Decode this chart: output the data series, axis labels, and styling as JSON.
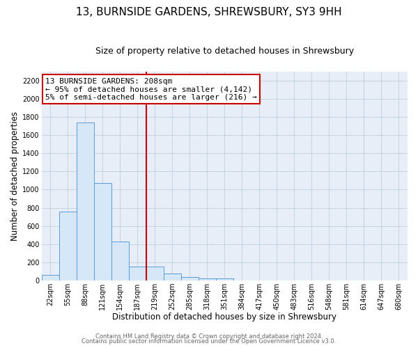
{
  "title": "13, BURNSIDE GARDENS, SHREWSBURY, SY3 9HH",
  "subtitle": "Size of property relative to detached houses in Shrewsbury",
  "xlabel": "Distribution of detached houses by size in Shrewsbury",
  "ylabel": "Number of detached properties",
  "bar_labels": [
    "22sqm",
    "55sqm",
    "88sqm",
    "121sqm",
    "154sqm",
    "187sqm",
    "219sqm",
    "252sqm",
    "285sqm",
    "318sqm",
    "351sqm",
    "384sqm",
    "417sqm",
    "450sqm",
    "483sqm",
    "516sqm",
    "548sqm",
    "581sqm",
    "614sqm",
    "647sqm",
    "680sqm"
  ],
  "bar_values": [
    60,
    760,
    1740,
    1070,
    430,
    155,
    155,
    80,
    35,
    25,
    20,
    0,
    0,
    0,
    0,
    0,
    0,
    0,
    0,
    0,
    0
  ],
  "bar_color": "#d6e8f7",
  "bar_edge_color": "#5b9bd5",
  "ylim": [
    0,
    2300
  ],
  "yticks": [
    0,
    200,
    400,
    600,
    800,
    1000,
    1200,
    1400,
    1600,
    1800,
    2000,
    2200
  ],
  "property_line_color": "#cc0000",
  "annotation_title": "13 BURNSIDE GARDENS: 208sqm",
  "annotation_line1": "← 95% of detached houses are smaller (4,142)",
  "annotation_line2": "5% of semi-detached houses are larger (216) →",
  "footer1": "Contains HM Land Registry data © Crown copyright and database right 2024.",
  "footer2": "Contains public sector information licensed under the Open Government Licence v3.0.",
  "plot_bg_color": "#e8eef8",
  "fig_bg_color": "#ffffff",
  "grid_color": "#b8c8d8",
  "title_fontsize": 11,
  "subtitle_fontsize": 9,
  "axis_label_fontsize": 8.5,
  "tick_fontsize": 7,
  "annotation_fontsize": 8,
  "footer_fontsize": 6
}
